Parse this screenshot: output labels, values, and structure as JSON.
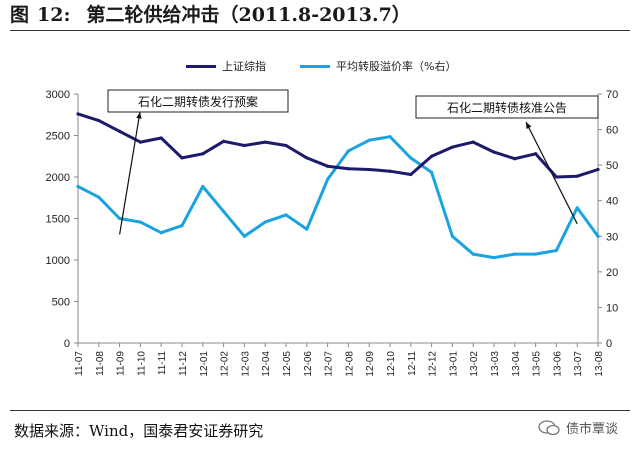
{
  "figure": {
    "number_label": "图",
    "number": "12:",
    "title": "第二轮供给冲击（2011.8-2013.7）"
  },
  "source_text": "数据来源：Wind，国泰君安证券研究",
  "watermark": "债市覃谈",
  "chart_data": {
    "type": "line",
    "title": "第二轮供给冲击（2011.8-2013.7）",
    "xlabel": "",
    "ylabel": "",
    "categories": [
      "11-07",
      "11-08",
      "11-09",
      "11-10",
      "11-11",
      "11-12",
      "12-01",
      "12-02",
      "12-03",
      "12-04",
      "12-05",
      "12-06",
      "12-07",
      "12-08",
      "12-09",
      "12-10",
      "12-11",
      "12-12",
      "13-01",
      "13-02",
      "13-03",
      "13-04",
      "13-05",
      "13-06",
      "13-07",
      "13-08"
    ],
    "y_left": {
      "ylim": [
        0,
        3000
      ],
      "ticks": [
        0,
        500,
        1000,
        1500,
        2000,
        2500,
        3000
      ]
    },
    "y_right": {
      "ylim": [
        0,
        70
      ],
      "ticks": [
        0,
        10,
        20,
        30,
        40,
        50,
        60,
        70
      ]
    },
    "grid": false,
    "legend_position": "top",
    "series": [
      {
        "name": "上证综指",
        "axis": "left",
        "color": "#1c1a6b",
        "values": [
          2760,
          2680,
          2550,
          2420,
          2470,
          2230,
          2280,
          2430,
          2380,
          2420,
          2380,
          2230,
          2130,
          2100,
          2090,
          2070,
          2030,
          2250,
          2360,
          2420,
          2300,
          2220,
          2280,
          2000,
          2010,
          2090
        ]
      },
      {
        "name": "平均转股溢价率（%右）",
        "axis": "right",
        "color": "#1aa3e0",
        "values": [
          44,
          41,
          35,
          34,
          31,
          33,
          44,
          37,
          30,
          34,
          36,
          32,
          46,
          54,
          57,
          58,
          52,
          48,
          30,
          25,
          24,
          25,
          25,
          26,
          38,
          30
        ]
      }
    ],
    "annotations": [
      {
        "text": "石化二期转债发行预案",
        "target_category": "11-09"
      },
      {
        "text": "石化二期转债核准公告",
        "target_category": "13-07"
      }
    ]
  }
}
